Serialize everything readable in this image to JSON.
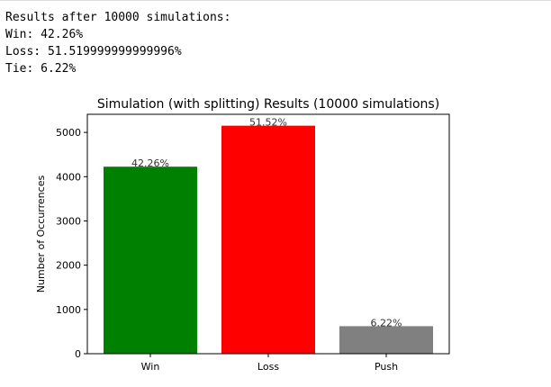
{
  "output": {
    "lines": [
      "Results after 10000 simulations:",
      "Win: 42.26%",
      "Loss: 51.519999999999996%",
      "Tie: 6.22%"
    ]
  },
  "chart_data": {
    "type": "bar",
    "title": "Simulation (with splitting) Results (10000 simulations)",
    "xlabel": "",
    "ylabel": "Number of Occurrences",
    "categories": [
      "Win",
      "Loss",
      "Push"
    ],
    "values": [
      4226,
      5152,
      622
    ],
    "data_labels": [
      "42.26%",
      "51.52%",
      "6.22%"
    ],
    "colors": [
      "#008000",
      "#ff0000",
      "#808080"
    ],
    "ylim": [
      0,
      5409.6
    ],
    "yticks": [
      0,
      1000,
      2000,
      3000,
      4000,
      5000
    ],
    "grid": false,
    "legend": "none"
  }
}
